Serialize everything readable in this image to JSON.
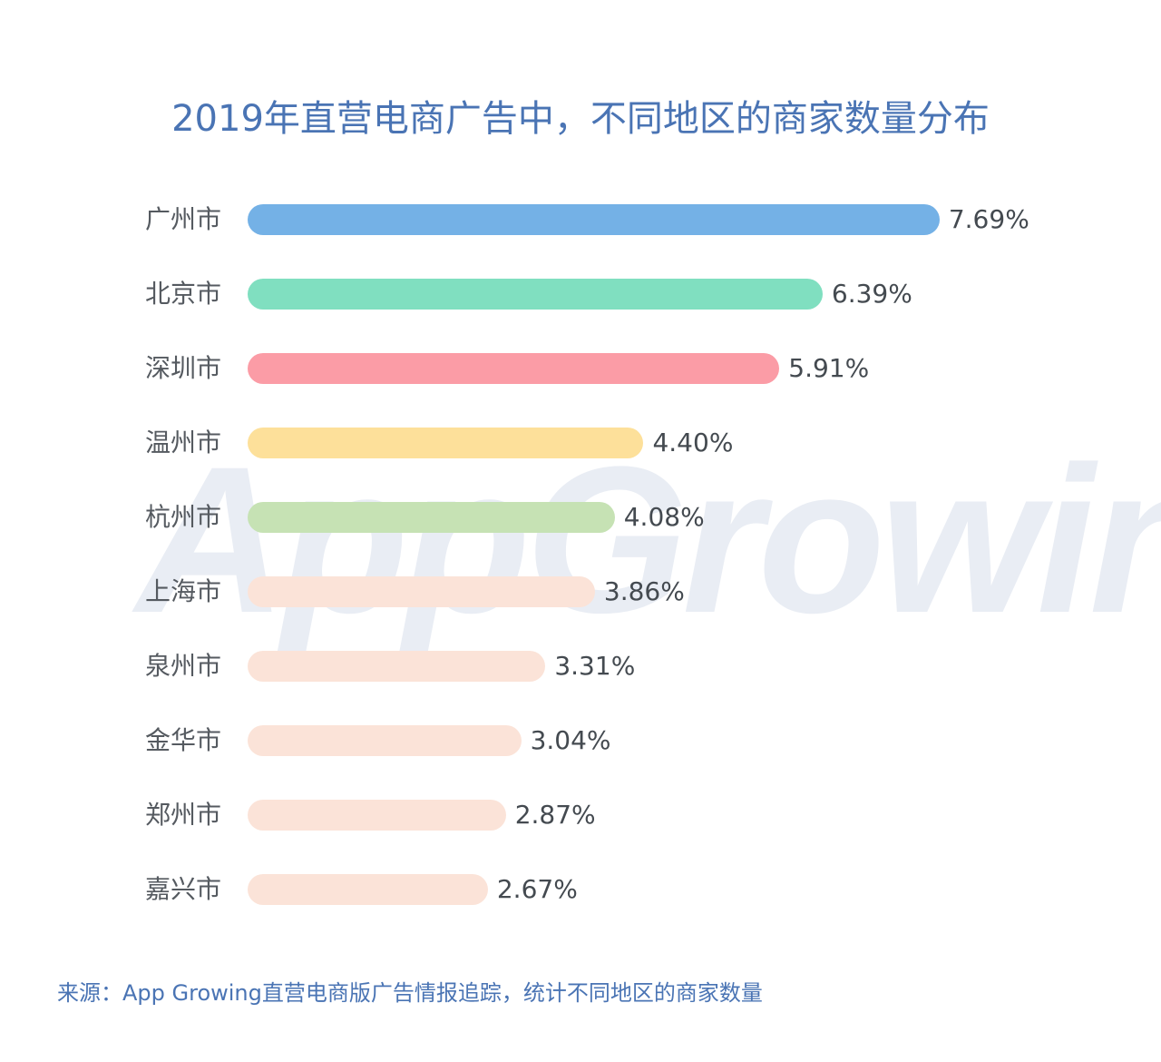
{
  "title": "2019年直营电商广告中，不同地区的商家数量分布",
  "watermark": "AppGrowing",
  "source": "来源：App Growing直营电商版广告情报追踪，统计不同地区的商家数量",
  "chart_data": {
    "type": "bar",
    "orientation": "horizontal",
    "title": "2019年直营电商广告中，不同地区的商家数量分布",
    "xlabel": "",
    "ylabel": "",
    "grid": false,
    "legend": null,
    "categories": [
      "广州市",
      "北京市",
      "深圳市",
      "温州市",
      "杭州市",
      "上海市",
      "泉州市",
      "金华市",
      "郑州市",
      "嘉兴市"
    ],
    "values": [
      7.69,
      6.39,
      5.91,
      4.4,
      4.08,
      3.86,
      3.31,
      3.04,
      2.87,
      2.67
    ],
    "value_labels": [
      "7.69%",
      "6.39%",
      "5.91%",
      "4.40%",
      "4.08%",
      "3.86%",
      "3.31%",
      "3.04%",
      "2.87%",
      "2.67%"
    ],
    "colors": [
      "#74b1e6",
      "#80dfc0",
      "#fb9ca6",
      "#fde09a",
      "#c6e2b4",
      "#fbe3d8",
      "#fbe3d8",
      "#fbe3d8",
      "#fbe3d8",
      "#fbe3d8"
    ],
    "unit": "%",
    "note": "来源：App Growing直营电商版广告情报追踪，统计不同地区的商家数量"
  },
  "rows": [
    {
      "label": "广州市",
      "value": "7.69%"
    },
    {
      "label": "北京市",
      "value": "6.39%"
    },
    {
      "label": "深圳市",
      "value": "5.91%"
    },
    {
      "label": "温州市",
      "value": "4.40%"
    },
    {
      "label": "杭州市",
      "value": "4.08%"
    },
    {
      "label": "上海市",
      "value": "3.86%"
    },
    {
      "label": "泉州市",
      "value": "3.31%"
    },
    {
      "label": "金华市",
      "value": "3.04%"
    },
    {
      "label": "郑州市",
      "value": "2.87%"
    },
    {
      "label": "嘉兴市",
      "value": "2.67%"
    }
  ]
}
